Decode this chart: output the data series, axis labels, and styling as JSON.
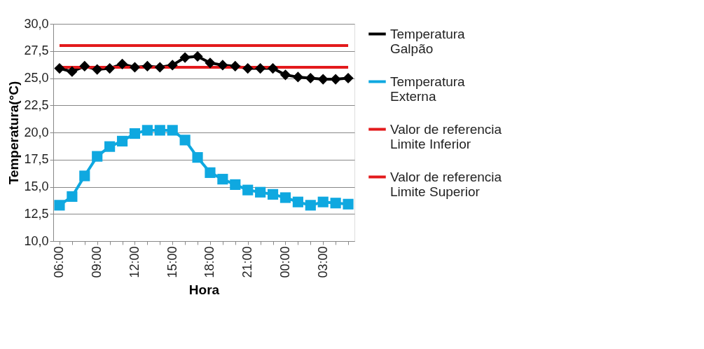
{
  "chart_data": {
    "type": "line",
    "xlabel": "Hora",
    "ylabel": "Temperatura(°C)",
    "categories": [
      "06:00",
      null,
      null,
      "09:00",
      null,
      null,
      "12:00",
      null,
      null,
      "15:00",
      null,
      null,
      "18:00",
      null,
      null,
      "21:00",
      null,
      null,
      "00:00",
      null,
      null,
      "03:00",
      null,
      null
    ],
    "ylim": [
      10,
      30
    ],
    "yticks": [
      {
        "value": 10,
        "label": "10,0"
      },
      {
        "value": 12.5,
        "label": "12,5"
      },
      {
        "value": 15,
        "label": "15,0"
      },
      {
        "value": 17.5,
        "label": "17,5"
      },
      {
        "value": 20,
        "label": "20,0"
      },
      {
        "value": 22.5,
        "label": "22,5"
      },
      {
        "value": 25,
        "label": "25,0"
      },
      {
        "value": 27.5,
        "label": "27,5"
      },
      {
        "value": 30,
        "label": "30,0"
      }
    ],
    "grid": "y",
    "legend": "right",
    "series": [
      {
        "name": "Temperatura Galpão",
        "color": "#000000",
        "marker": "diamond",
        "values": [
          25.9,
          25.6,
          26.1,
          25.8,
          25.9,
          26.3,
          26.0,
          26.1,
          26.0,
          26.2,
          26.9,
          27.0,
          26.4,
          26.2,
          26.1,
          25.9,
          25.9,
          25.9,
          25.3,
          25.1,
          25.0,
          24.9,
          24.9,
          25.0
        ]
      },
      {
        "name": "Temperatura Externa",
        "color": "#0fa8e0",
        "marker": "square",
        "values": [
          13.3,
          14.1,
          16.0,
          17.8,
          18.7,
          19.2,
          19.9,
          20.2,
          20.2,
          20.2,
          19.3,
          17.7,
          16.3,
          15.7,
          15.2,
          14.7,
          14.5,
          14.3,
          14.0,
          13.6,
          13.3,
          13.6,
          13.5,
          13.4
        ]
      },
      {
        "name": "Valor de referencia Limite Inferior",
        "color": "#e31a1c",
        "marker": "none",
        "values": [
          26,
          26,
          26,
          26,
          26,
          26,
          26,
          26,
          26,
          26,
          26,
          26,
          26,
          26,
          26,
          26,
          26,
          26,
          26,
          26,
          26,
          26,
          26,
          26
        ]
      },
      {
        "name": "Valor de referencia Limite Superior",
        "color": "#e31a1c",
        "marker": "none",
        "values": [
          28,
          28,
          28,
          28,
          28,
          28,
          28,
          28,
          28,
          28,
          28,
          28,
          28,
          28,
          28,
          28,
          28,
          28,
          28,
          28,
          28,
          28,
          28,
          28
        ]
      }
    ]
  }
}
